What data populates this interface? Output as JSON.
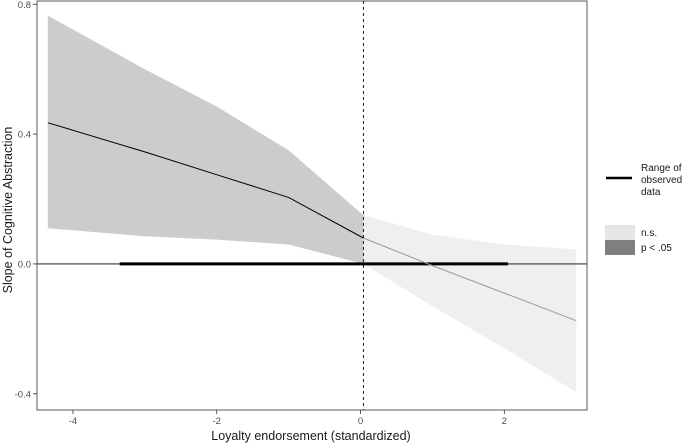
{
  "chart_data": {
    "type": "line",
    "xlabel": "Loyalty endorsement (standardized)",
    "ylabel": "Slope of Cognitive Abstraction",
    "xlim": [
      -4.5,
      3.15
    ],
    "ylim": [
      -0.45,
      0.81
    ],
    "x_ticks": [
      -4,
      -2,
      0,
      2
    ],
    "x_tick_labels": [
      "-4",
      "-2",
      "0",
      "2"
    ],
    "y_ticks": [
      -0.4,
      0.0,
      0.4,
      0.8
    ],
    "y_tick_labels": [
      "-0.4",
      "0.0",
      "0.4",
      "0.8"
    ],
    "vline_x": 0.04,
    "hline_y": 0.0,
    "grid": false,
    "legend_position": "right",
    "series": [
      {
        "name": "p < .05",
        "x": [
          -4.35,
          -3,
          -2,
          -1,
          0.04
        ],
        "y": [
          0.435,
          0.345,
          0.275,
          0.205,
          0.08
        ],
        "ci_lower": [
          0.11,
          0.085,
          0.075,
          0.06,
          0.0
        ],
        "ci_upper": [
          0.765,
          0.6,
          0.485,
          0.35,
          0.15
        ]
      },
      {
        "name": "n.s.",
        "x": [
          0.04,
          1,
          2,
          3
        ],
        "y": [
          0.08,
          -0.005,
          -0.09,
          -0.175
        ],
        "ci_lower": [
          0.0,
          -0.13,
          -0.26,
          -0.395
        ],
        "ci_upper": [
          0.15,
          0.09,
          0.06,
          0.045
        ]
      }
    ],
    "observed_range": {
      "x": [
        -3.35,
        2.05
      ],
      "y": 0.0
    },
    "legend": {
      "range_label": [
        "Range of",
        "observed",
        "data"
      ],
      "ns_label": "n.s.",
      "sig_label": "p < .05"
    },
    "colors": {
      "sig_fill": "#cccccc",
      "ns_fill": "#efefef",
      "sig_line": "#000000",
      "ns_line": "#9a9a9a",
      "legend_ns": "#e6e6e6",
      "legend_sig": "#7f7f7f",
      "range_line": "#000000"
    }
  }
}
